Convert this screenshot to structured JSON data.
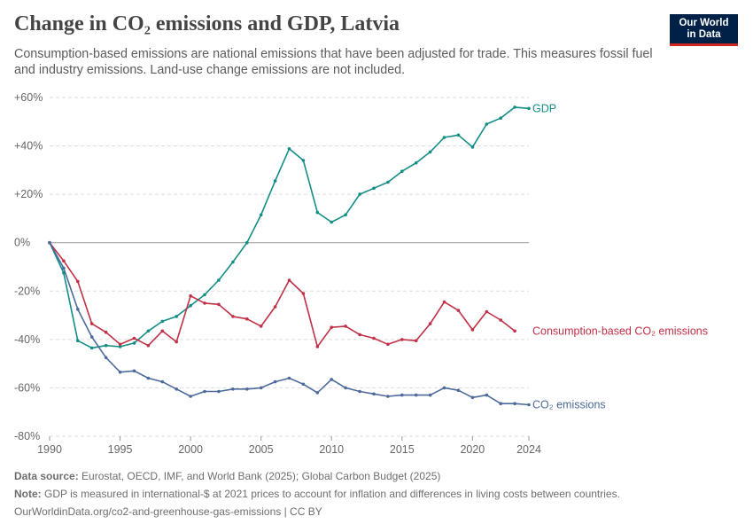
{
  "header": {
    "title": "Change in CO₂ emissions and GDP, Latvia",
    "subtitle": "Consumption-based emissions are national emissions that have been adjusted for trade. This measures fossil fuel and industry emissions. Land-use change emissions are not included.",
    "logo_line1": "Our World",
    "logo_line2": "in Data"
  },
  "footer": {
    "source_label": "Data source:",
    "source_text": "Eurostat, OECD, IMF, and World Bank (2025); Global Carbon Budget (2025)",
    "note_label": "Note:",
    "note_text": "GDP is measured in international-$ at 2021 prices to account for inflation and differences in living costs between countries.",
    "url": "OurWorldinData.org/co2-and-greenhouse-gas-emissions | CC BY"
  },
  "colors": {
    "gdp": "#138d85",
    "consumption": "#c03046",
    "co2": "#4c6a9c",
    "grid": "#dddddd",
    "zero_line": "#999999",
    "logo_bg": "#002147",
    "logo_accent": "#ce261e"
  },
  "chart_data": {
    "type": "line",
    "ylim": [
      -80,
      60
    ],
    "xlim": [
      1990,
      2024
    ],
    "y_ticks": [
      {
        "value": 60,
        "label": "+60%"
      },
      {
        "value": 40,
        "label": "+40%"
      },
      {
        "value": 20,
        "label": "+20%"
      },
      {
        "value": 0,
        "label": "0%"
      },
      {
        "value": -20,
        "label": "-20%"
      },
      {
        "value": -40,
        "label": "-40%"
      },
      {
        "value": -60,
        "label": "-60%"
      },
      {
        "value": -80,
        "label": "-80%"
      }
    ],
    "x_ticks": [
      {
        "value": 1990,
        "label": "1990"
      },
      {
        "value": 1995,
        "label": "1995"
      },
      {
        "value": 2000,
        "label": "2000"
      },
      {
        "value": 2005,
        "label": "2005"
      },
      {
        "value": 2010,
        "label": "2010"
      },
      {
        "value": 2015,
        "label": "2015"
      },
      {
        "value": 2020,
        "label": "2020"
      },
      {
        "value": 2024,
        "label": "2024"
      }
    ],
    "grid": true,
    "legend": "inline-right",
    "series": [
      {
        "name": "GDP",
        "color_key": "gdp",
        "x": [
          1990,
          1991,
          1992,
          1993,
          1994,
          1995,
          1996,
          1997,
          1998,
          1999,
          2000,
          2001,
          2002,
          2003,
          2004,
          2005,
          2006,
          2007,
          2008,
          2009,
          2010,
          2011,
          2012,
          2013,
          2014,
          2015,
          2016,
          2017,
          2018,
          2019,
          2020,
          2021,
          2022,
          2023,
          2024
        ],
        "y": [
          0,
          -12.5,
          -40.5,
          -43.5,
          -42.5,
          -43,
          -41.5,
          -36.5,
          -32.5,
          -30.5,
          -26,
          -21.5,
          -15.5,
          -8,
          0,
          11.5,
          25.5,
          38.8,
          34,
          12.5,
          8.5,
          11.5,
          20,
          22.5,
          25,
          29.5,
          33,
          37.5,
          43.5,
          44.5,
          39.5,
          49,
          51.5,
          56,
          55.5
        ]
      },
      {
        "name": "Consumption-based CO₂ emissions",
        "color_key": "consumption",
        "x": [
          1990,
          1991,
          1992,
          1993,
          1994,
          1995,
          1996,
          1997,
          1998,
          1999,
          2000,
          2001,
          2002,
          2003,
          2004,
          2005,
          2006,
          2007,
          2008,
          2009,
          2010,
          2011,
          2012,
          2013,
          2014,
          2015,
          2016,
          2017,
          2018,
          2019,
          2020,
          2021,
          2022,
          2023,
          2024
        ],
        "y": [
          0,
          -7.5,
          -16,
          -33.5,
          -37,
          -42,
          -39.5,
          -42.5,
          -36.5,
          -41,
          -22,
          -25,
          -25.5,
          -30.5,
          -31.5,
          -34.5,
          -26.5,
          -15.5,
          -21,
          -43,
          -35,
          -34.5,
          -38,
          -39.5,
          -42,
          -40,
          -40.5,
          -33.5,
          -24.5,
          -28,
          -36,
          -28.5,
          -32,
          -36.5,
          null
        ]
      },
      {
        "name": "CO₂ emissions",
        "color_key": "co2",
        "x": [
          1990,
          1991,
          1992,
          1993,
          1994,
          1995,
          1996,
          1997,
          1998,
          1999,
          2000,
          2001,
          2002,
          2003,
          2004,
          2005,
          2006,
          2007,
          2008,
          2009,
          2010,
          2011,
          2012,
          2013,
          2014,
          2015,
          2016,
          2017,
          2018,
          2019,
          2020,
          2021,
          2022,
          2023,
          2024
        ],
        "y": [
          0,
          -10.5,
          -27.5,
          -39,
          -47.5,
          -53.5,
          -53,
          -56,
          -57.5,
          -60.5,
          -63.5,
          -61.5,
          -61.5,
          -60.5,
          -60.5,
          -60,
          -57.5,
          -56,
          -58.5,
          -62,
          -56.5,
          -60,
          -61.5,
          -62.5,
          -63.5,
          -63,
          -63,
          -63,
          -60,
          -61,
          -64,
          -63,
          -66.5,
          -66.5,
          -67
        ]
      }
    ]
  }
}
